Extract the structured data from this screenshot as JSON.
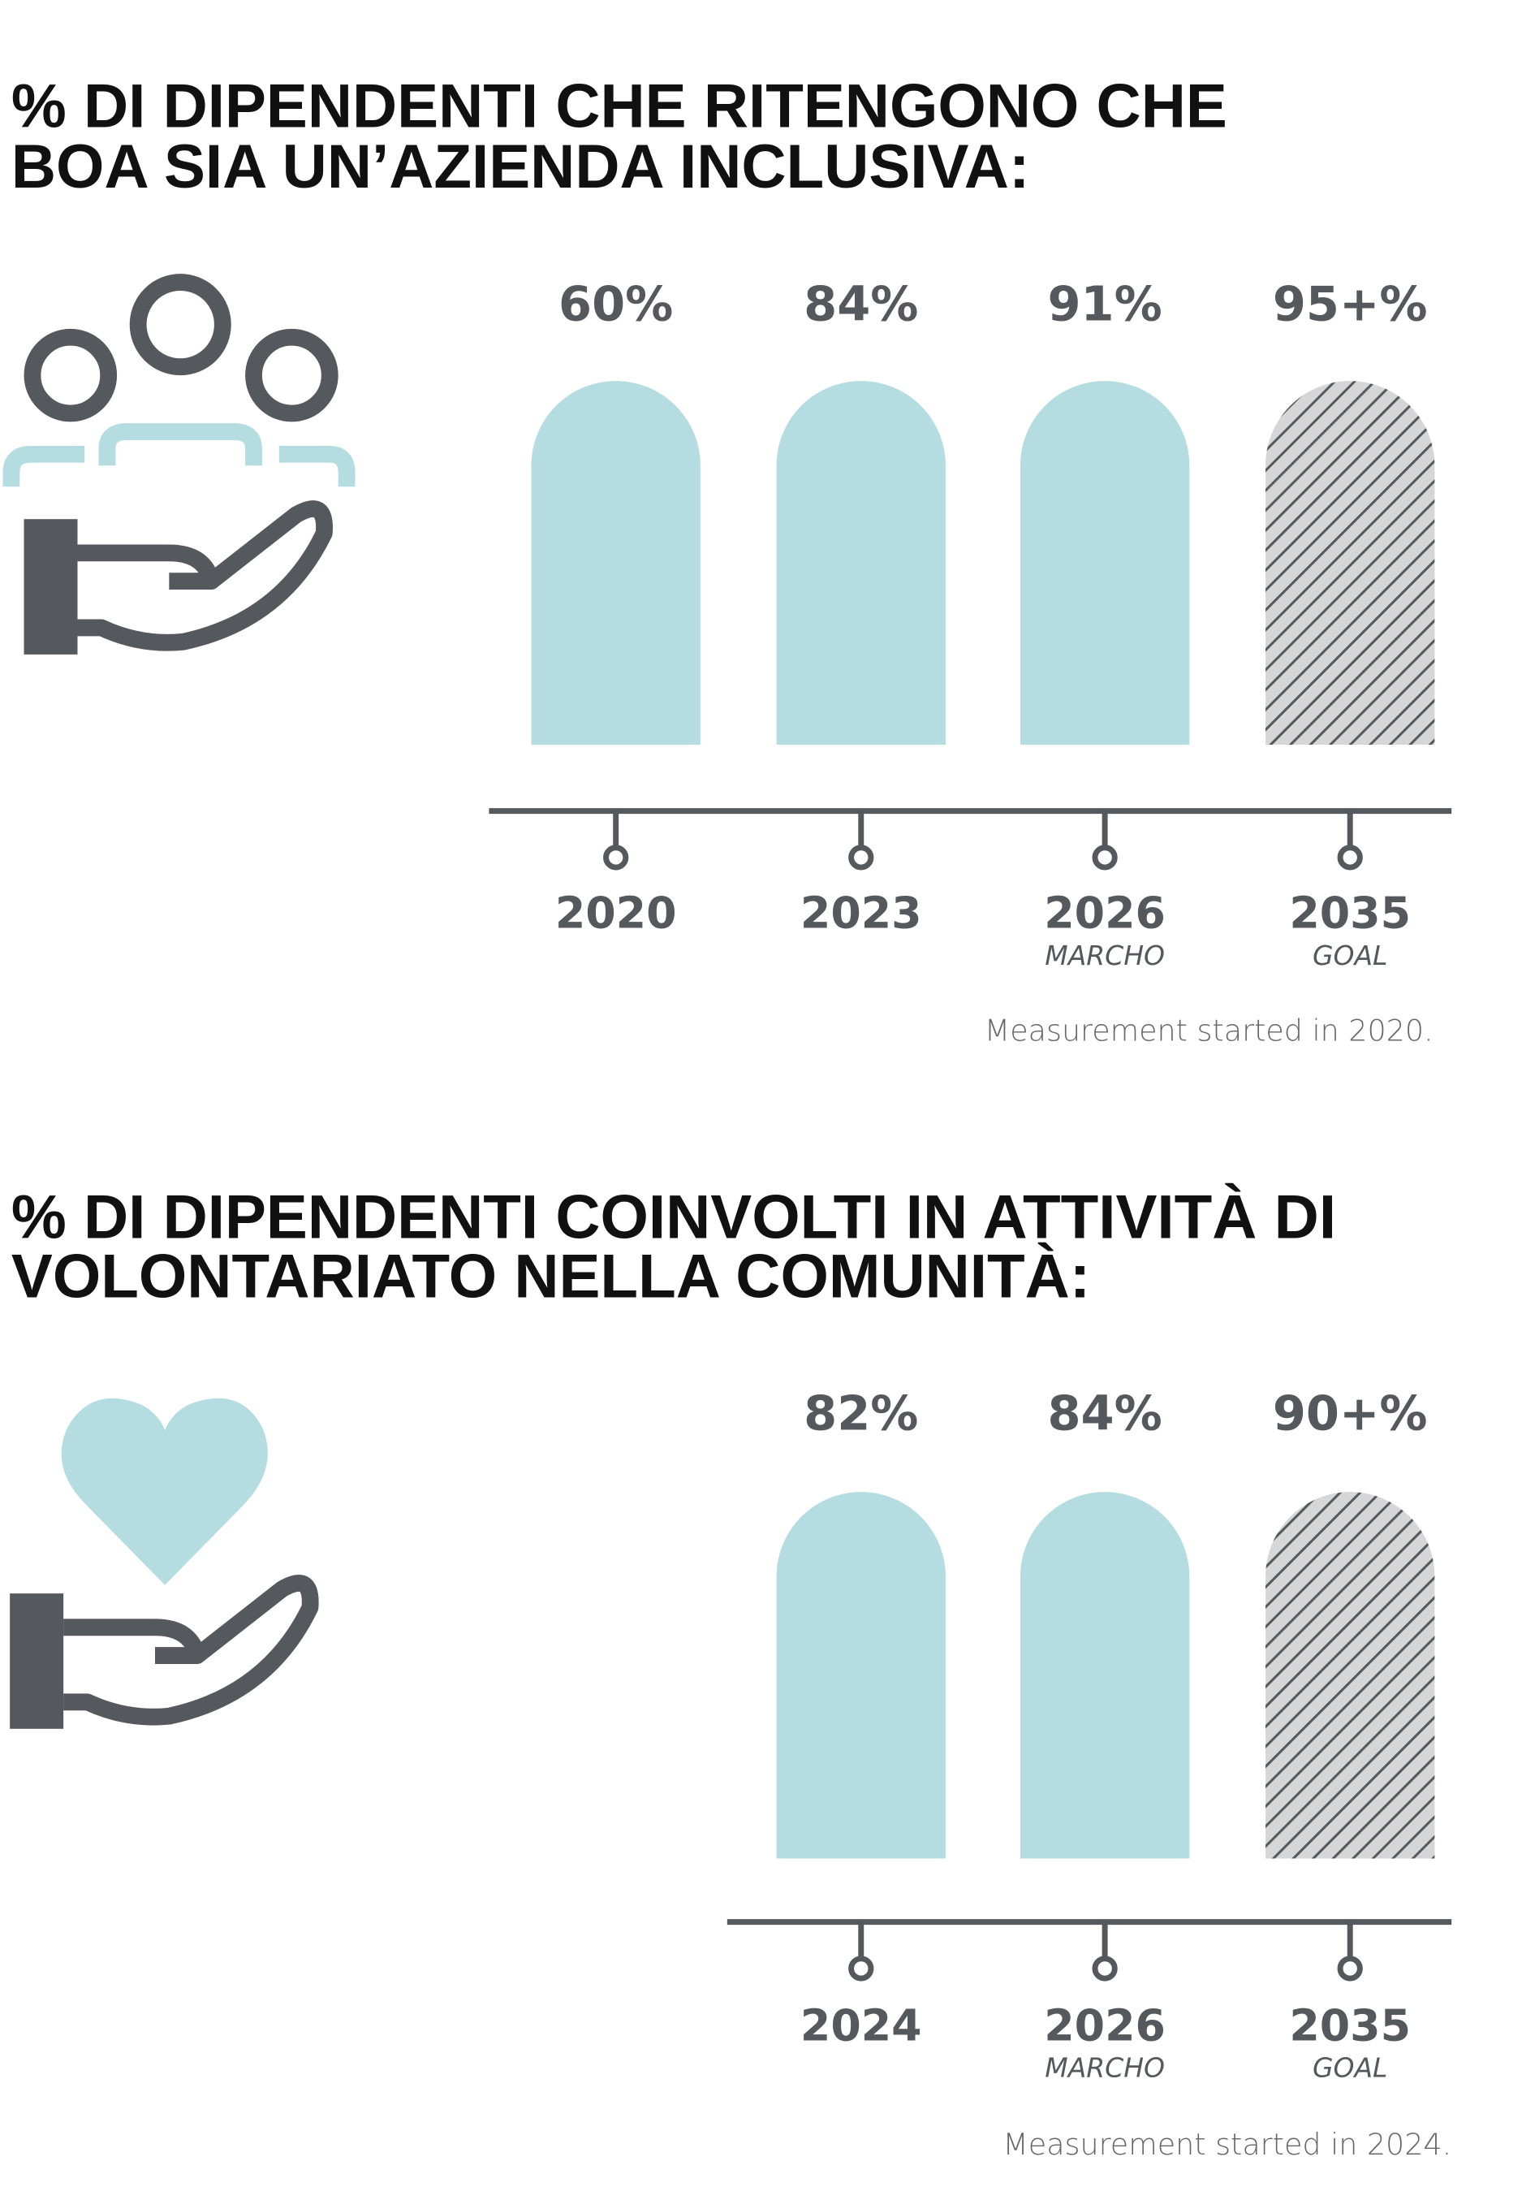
{
  "sections": [
    {
      "title": [
        "% DI DIPENDENTI CHE RITENGONO CHE",
        "BOA SIA UN’AZIENDA INCLUSIVA:"
      ],
      "items": [
        {
          "value": "60%",
          "year": "2020"
        },
        {
          "value": "84%",
          "year": "2023"
        },
        {
          "value": "91%",
          "year": "2026",
          "note": "MARCHO"
        },
        {
          "value": "95+%",
          "year": "2035",
          "note": "GOAL"
        }
      ],
      "footnote": "Measurement started in 2020."
    },
    {
      "title": [
        "% DI DIPENDENTI COINVOLTI IN ATTIVITÀ DI",
        "VOLONTARIATO NELLA COMUNITÀ:"
      ],
      "items": [
        {
          "value": "82%",
          "year": "2024"
        },
        {
          "value": "84%",
          "year": "2026",
          "note": "MARCHO"
        },
        {
          "value": "90+%",
          "year": "2035",
          "note": "GOAL"
        }
      ],
      "footnote": "Measurement started in 2024."
    }
  ]
}
